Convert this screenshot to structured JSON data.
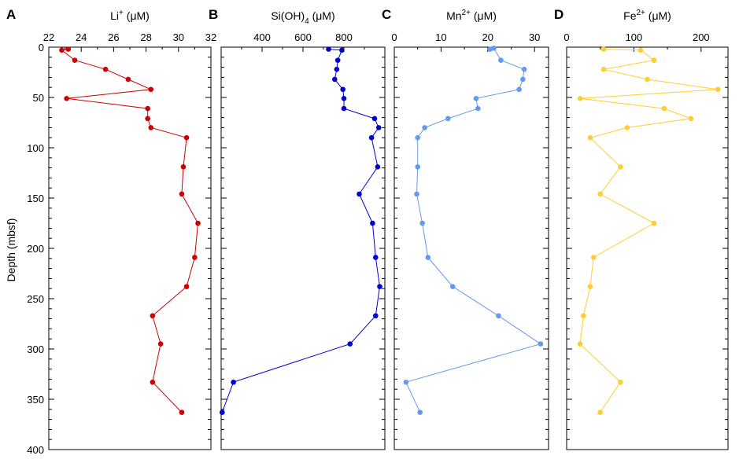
{
  "figure": {
    "ylabel": "Depth (mbsf)",
    "ylim": [
      0,
      400
    ],
    "y_inverted": true,
    "y_ticks": [
      0,
      50,
      100,
      150,
      200,
      250,
      300,
      350,
      400
    ]
  },
  "chart_data": [
    {
      "panel_letter": "A",
      "type": "line",
      "title_main": "Li",
      "title_sup": "+",
      "title_sub": "",
      "title_unit": " (μM)",
      "xlim": [
        22,
        32
      ],
      "x_ticks": [
        22,
        24,
        26,
        28,
        30,
        32
      ],
      "color": "#cc0000",
      "series": [
        {
          "x": 23.2,
          "y": 2
        },
        {
          "x": 22.8,
          "y": 3
        },
        {
          "x": 23.6,
          "y": 13
        },
        {
          "x": 25.5,
          "y": 22
        },
        {
          "x": 26.9,
          "y": 32
        },
        {
          "x": 28.3,
          "y": 42
        },
        {
          "x": 23.1,
          "y": 51
        },
        {
          "x": 28.1,
          "y": 61
        },
        {
          "x": 28.1,
          "y": 71
        },
        {
          "x": 28.3,
          "y": 80
        },
        {
          "x": 30.5,
          "y": 90
        },
        {
          "x": 30.3,
          "y": 119
        },
        {
          "x": 30.2,
          "y": 146
        },
        {
          "x": 31.2,
          "y": 175
        },
        {
          "x": 31.0,
          "y": 209
        },
        {
          "x": 30.5,
          "y": 238
        },
        {
          "x": 28.4,
          "y": 267
        },
        {
          "x": 28.9,
          "y": 295
        },
        {
          "x": 28.4,
          "y": 333
        },
        {
          "x": 30.2,
          "y": 363
        }
      ]
    },
    {
      "panel_letter": "B",
      "type": "line",
      "title_main": "Si(OH)",
      "title_sup": "",
      "title_sub": "4",
      "title_unit": " (μM)",
      "xlim": [
        200,
        1000
      ],
      "x_ticks": [
        400,
        600,
        800
      ],
      "color": "#0000cc",
      "series": [
        {
          "x": 725,
          "y": 2
        },
        {
          "x": 790,
          "y": 3
        },
        {
          "x": 770,
          "y": 13
        },
        {
          "x": 765,
          "y": 22
        },
        {
          "x": 755,
          "y": 32
        },
        {
          "x": 795,
          "y": 42
        },
        {
          "x": 800,
          "y": 51
        },
        {
          "x": 800,
          "y": 61
        },
        {
          "x": 950,
          "y": 71
        },
        {
          "x": 970,
          "y": 80
        },
        {
          "x": 935,
          "y": 90
        },
        {
          "x": 965,
          "y": 119
        },
        {
          "x": 875,
          "y": 146
        },
        {
          "x": 940,
          "y": 175
        },
        {
          "x": 955,
          "y": 209
        },
        {
          "x": 975,
          "y": 238
        },
        {
          "x": 955,
          "y": 267
        },
        {
          "x": 830,
          "y": 295
        },
        {
          "x": 260,
          "y": 333
        },
        {
          "x": 205,
          "y": 363
        }
      ]
    },
    {
      "panel_letter": "C",
      "type": "line",
      "title_main": "Mn",
      "title_sup": "2+",
      "title_sub": "",
      "title_unit": " (μM)",
      "xlim": [
        0,
        33
      ],
      "x_ticks": [
        0,
        10,
        20,
        30
      ],
      "color": "#6699ee",
      "series": [
        {
          "x": 20.5,
          "y": 2
        },
        {
          "x": 21.3,
          "y": 1
        },
        {
          "x": 22.8,
          "y": 13
        },
        {
          "x": 27.8,
          "y": 22
        },
        {
          "x": 27.5,
          "y": 32
        },
        {
          "x": 26.7,
          "y": 42
        },
        {
          "x": 17.5,
          "y": 51
        },
        {
          "x": 17.9,
          "y": 61
        },
        {
          "x": 11.5,
          "y": 71
        },
        {
          "x": 6.5,
          "y": 80
        },
        {
          "x": 5.0,
          "y": 90
        },
        {
          "x": 5.0,
          "y": 119
        },
        {
          "x": 4.8,
          "y": 146
        },
        {
          "x": 6.0,
          "y": 175
        },
        {
          "x": 7.2,
          "y": 209
        },
        {
          "x": 12.5,
          "y": 238
        },
        {
          "x": 22.3,
          "y": 267
        },
        {
          "x": 31.3,
          "y": 295
        },
        {
          "x": 2.5,
          "y": 333
        },
        {
          "x": 5.5,
          "y": 363
        }
      ]
    },
    {
      "panel_letter": "D",
      "type": "line",
      "title_main": "Fe",
      "title_sup": "2+",
      "title_sub": "",
      "title_unit": " (μM)",
      "xlim": [
        0,
        240
      ],
      "x_ticks": [
        0,
        100,
        200
      ],
      "color": "#ffcc33",
      "series": [
        {
          "x": 55,
          "y": 2
        },
        {
          "x": 110,
          "y": 3
        },
        {
          "x": 130,
          "y": 13
        },
        {
          "x": 55,
          "y": 22
        },
        {
          "x": 120,
          "y": 32
        },
        {
          "x": 225,
          "y": 42
        },
        {
          "x": 20,
          "y": 51
        },
        {
          "x": 145,
          "y": 61
        },
        {
          "x": 185,
          "y": 71
        },
        {
          "x": 90,
          "y": 80
        },
        {
          "x": 35,
          "y": 90
        },
        {
          "x": 80,
          "y": 119
        },
        {
          "x": 50,
          "y": 146
        },
        {
          "x": 130,
          "y": 175
        },
        {
          "x": 40,
          "y": 209
        },
        {
          "x": 35,
          "y": 238
        },
        {
          "x": 25,
          "y": 267
        },
        {
          "x": 20,
          "y": 295
        },
        {
          "x": 80,
          "y": 333
        },
        {
          "x": 50,
          "y": 363
        }
      ]
    }
  ]
}
